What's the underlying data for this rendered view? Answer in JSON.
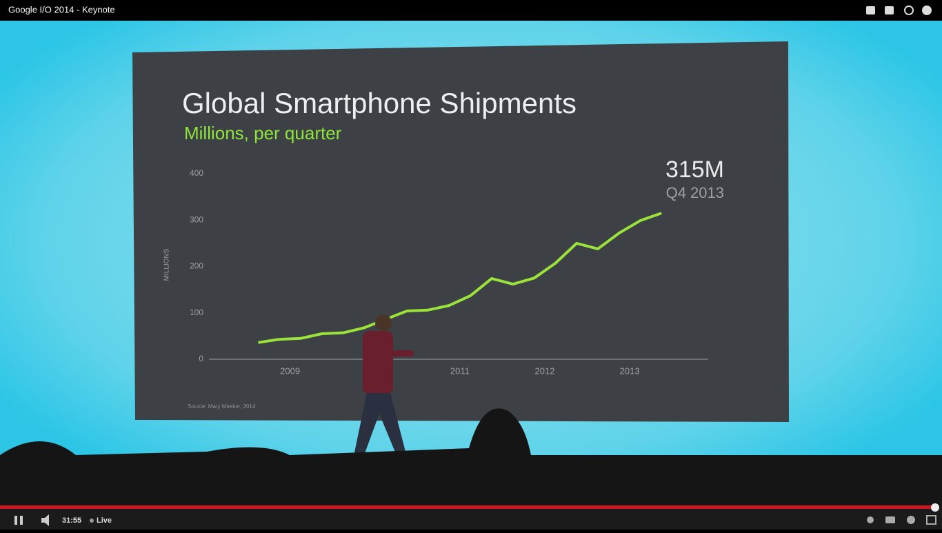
{
  "player": {
    "title": "Google I/O 2014 - Keynote",
    "time": "31:55",
    "live": "Live"
  },
  "chart_data": {
    "type": "line",
    "title": "Global Smartphone Shipments",
    "subtitle": "Millions, per quarter",
    "y_label": "MILLIONS",
    "source": "Source: Mary Meeker, 2014",
    "annotation": {
      "value": "315M",
      "period": "Q4 2013"
    },
    "x": [
      2009,
      2009.25,
      2009.5,
      2009.75,
      2010,
      2010.25,
      2010.5,
      2010.75,
      2011,
      2011.25,
      2011.5,
      2011.75,
      2012,
      2012.25,
      2012.5,
      2012.75,
      2013,
      2013.25,
      2013.5,
      2013.75
    ],
    "values": [
      36,
      43,
      45,
      55,
      57,
      68,
      86,
      104,
      106,
      116,
      137,
      174,
      162,
      175,
      207,
      250,
      238,
      272,
      299,
      315
    ],
    "color": "#9be33b",
    "xlim": [
      2008.42,
      2014.3
    ],
    "xticks": [
      {
        "value": 2009.375,
        "label": "2009"
      },
      {
        "value": 2011.375,
        "label": "2011"
      },
      {
        "value": 2012.375,
        "label": "2012"
      },
      {
        "value": 2013.375,
        "label": "2013"
      }
    ],
    "ylim": [
      0,
      400
    ],
    "yticks": [
      0,
      100,
      200,
      300,
      400
    ]
  }
}
